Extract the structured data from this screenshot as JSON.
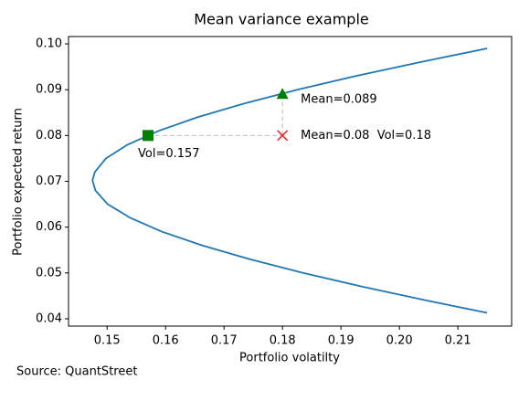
{
  "chart_data": {
    "type": "line",
    "title": "Mean variance example",
    "xlabel": "Portfolio volatilty",
    "ylabel": "Portfolio expected return",
    "xlim": [
      0.1434,
      0.2192
    ],
    "ylim": [
      0.0384,
      0.1016
    ],
    "xticks": [
      0.15,
      0.16,
      0.17,
      0.18,
      0.19,
      {
        "value": 0.2,
        "label": "0.20"
      },
      0.21
    ],
    "yticks": [
      0.04,
      0.05,
      0.06,
      0.07,
      0.08,
      0.09,
      {
        "value": 0.1,
        "label": "0.10"
      }
    ],
    "curve": {
      "color": "#1f77b4",
      "x": [
        0.215,
        0.2046,
        0.1937,
        0.1836,
        0.1744,
        0.1663,
        0.1594,
        0.154,
        0.1501,
        0.148,
        0.1475,
        0.1479,
        0.1498,
        0.1535,
        0.1588,
        0.1655,
        0.1735,
        0.1826,
        0.1926,
        0.2035,
        0.215
      ],
      "y": [
        0.0413,
        0.044,
        0.047,
        0.05,
        0.053,
        0.056,
        0.059,
        0.062,
        0.065,
        0.068,
        0.0702,
        0.072,
        0.075,
        0.078,
        0.081,
        0.084,
        0.087,
        0.09,
        0.093,
        0.096,
        0.099
      ]
    },
    "points": [
      {
        "marker": "square",
        "color": "#008000",
        "x": 0.157,
        "y": 0.08,
        "label": "Vol=0.157"
      },
      {
        "marker": "triangle",
        "color": "#008000",
        "x": 0.18,
        "y": 0.089,
        "label": "Mean=0.089"
      },
      {
        "marker": "x",
        "color": "#e8262a",
        "x": 0.18,
        "y": 0.08,
        "label": "Mean=0.08  Vol=0.18"
      }
    ]
  },
  "source": "Source: QuantStreet"
}
